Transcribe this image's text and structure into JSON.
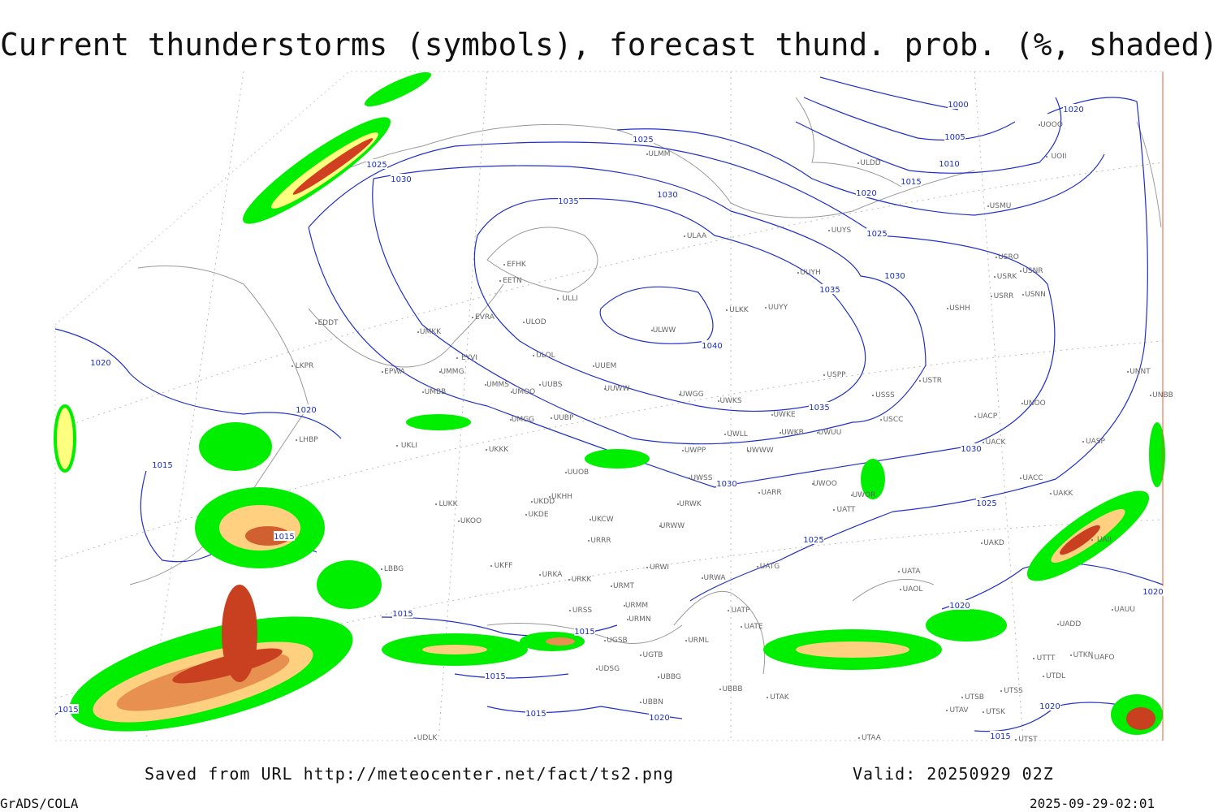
{
  "title": "Current thunderstorms (symbols), forecast thund. prob. (%, shaded)",
  "footer": {
    "saved": "Saved from URL http://meteocenter.net/fact/ts2.png",
    "valid": "Valid: 20250929 02Z",
    "software": "GrADS/COLA",
    "timestamp": "2025-09-29-02:01"
  },
  "isobar_labels": [
    1025,
    1025,
    1030,
    1035,
    1030,
    1040,
    1035,
    1035,
    1030,
    1025,
    1020,
    1015,
    1010,
    1005,
    1000,
    1020,
    1030,
    1030,
    1025,
    1025,
    1020,
    1020,
    1015,
    1015,
    1015,
    1015,
    1015,
    1015,
    1020,
    1020,
    1015,
    1020,
    1015,
    1020
  ],
  "stations": [
    "EFHK",
    "EETN",
    "ULLI",
    "ULOD",
    "ULOL",
    "UUEM",
    "UUWW",
    "UUBS",
    "UMMS",
    "UMOO",
    "UMMG",
    "EYVI",
    "EVRA",
    "UMKK",
    "EPWA",
    "EDDT",
    "LKPR",
    "LHBP",
    "UMBB",
    "UUBP",
    "UMGG",
    "UKKK",
    "UKLI",
    "UUOB",
    "UKHH",
    "UKDD",
    "UKDE",
    "UKCW",
    "URRR",
    "UKOO",
    "LUKK",
    "UKFF",
    "URKA",
    "URKK",
    "URMT",
    "URMM",
    "URSS",
    "URMN",
    "UGSB",
    "UGTB",
    "UDSG",
    "UBBG",
    "UBBN",
    "UBBB",
    "URML",
    "URWA",
    "URWI",
    "URWW",
    "URWK",
    "UWSS",
    "UWPP",
    "UWWW",
    "UWLL",
    "UWKS",
    "UWGG",
    "UWKE",
    "UWKB",
    "UWUU",
    "UWOO",
    "UARR",
    "UATG",
    "UATT",
    "UWOR",
    "UATP",
    "UATE",
    "UTAK",
    "UATA",
    "UAOL",
    "USSS",
    "USCC",
    "USTR",
    "USPP",
    "UUYY",
    "ULKK",
    "ULWW",
    "ULAA",
    "UUYH",
    "UUYS",
    "ULMM",
    "ULDD",
    "USMU",
    "UOII",
    "UOOO",
    "USRO",
    "USRK",
    "USNR",
    "USRR",
    "USNN",
    "USHH",
    "UNNT",
    "UNBB",
    "UNOO",
    "UACP",
    "UACK",
    "UASP",
    "UACC",
    "UAKK",
    "UAKD",
    "UAII",
    "UAUU",
    "UADD",
    "UTTT",
    "UTKN",
    "UAFO",
    "UTDL",
    "UTSS",
    "UTSB",
    "UTAV",
    "UTSK",
    "UTAA",
    "UTST",
    "UDLK",
    "LBBG"
  ]
}
